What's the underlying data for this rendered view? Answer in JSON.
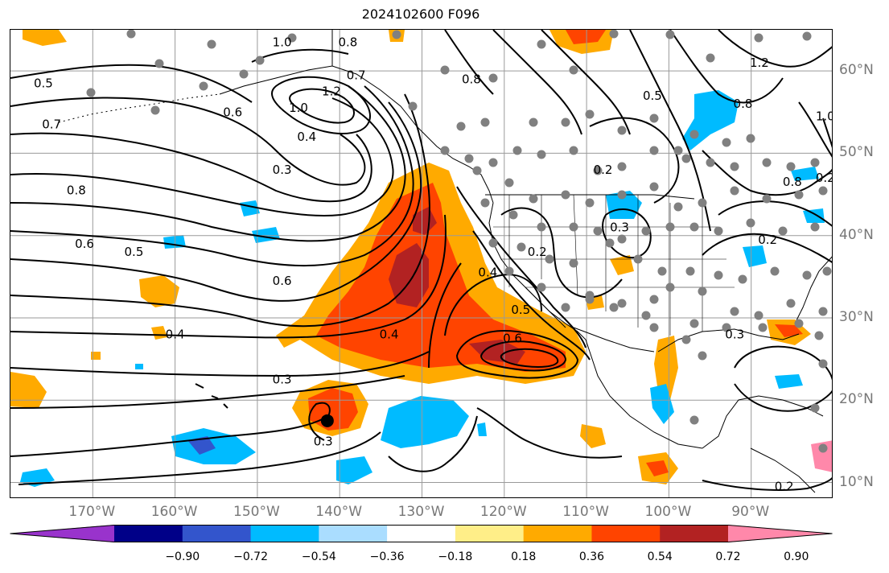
{
  "title": "2024102600 F096",
  "map": {
    "projection": "cylindrical",
    "lon_range": [
      -180,
      -80
    ],
    "lat_range": [
      8,
      65
    ],
    "lon_ticks": [
      "170°W",
      "160°W",
      "150°W",
      "140°W",
      "130°W",
      "120°W",
      "110°W",
      "100°W",
      "90°W"
    ],
    "lat_ticks": [
      "60°N",
      "50°N",
      "40°N",
      "30°N",
      "20°N",
      "10°N"
    ],
    "grid": true
  },
  "colorbar": {
    "ticks": [
      "−0.90",
      "−0.72",
      "−0.54",
      "−0.36",
      "−0.18",
      "0.18",
      "0.36",
      "0.54",
      "0.72",
      "0.90"
    ],
    "colors": [
      "#9933cc",
      "#000088",
      "#3355cc",
      "#00bbff",
      "#aaddff",
      "#ffffff",
      "#ffee88",
      "#ffaa00",
      "#ff4400",
      "#b22222",
      "#ff88aa"
    ],
    "extend": "both"
  },
  "contour_labels": [
    {
      "text": "0.5",
      "lon": -176,
      "lat": 58.5
    },
    {
      "text": "0.7",
      "lon": -175,
      "lat": 53.5
    },
    {
      "text": "0.8",
      "lon": -172,
      "lat": 45.5
    },
    {
      "text": "0.6",
      "lon": -171,
      "lat": 39
    },
    {
      "text": "0.5",
      "lon": -165,
      "lat": 38
    },
    {
      "text": "0.6",
      "lon": -153,
      "lat": 55
    },
    {
      "text": "1.0",
      "lon": -145,
      "lat": 55.5
    },
    {
      "text": "1.2",
      "lon": -141,
      "lat": 57.5
    },
    {
      "text": "0.4",
      "lon": -144,
      "lat": 52
    },
    {
      "text": "0.3",
      "lon": -147,
      "lat": 48
    },
    {
      "text": "1.0",
      "lon": -147,
      "lat": 63.5
    },
    {
      "text": "0.8",
      "lon": -139,
      "lat": 63.5
    },
    {
      "text": "0.7",
      "lon": -138,
      "lat": 59.5
    },
    {
      "text": "0.6",
      "lon": -147,
      "lat": 34.5
    },
    {
      "text": "0.4",
      "lon": -160,
      "lat": 28
    },
    {
      "text": "0.4",
      "lon": -134,
      "lat": 28
    },
    {
      "text": "0.3",
      "lon": -147,
      "lat": 22.5
    },
    {
      "text": "0.3",
      "lon": -142,
      "lat": 15
    },
    {
      "text": "0.4",
      "lon": -122,
      "lat": 35.5
    },
    {
      "text": "0.5",
      "lon": -118,
      "lat": 31
    },
    {
      "text": "0.6",
      "lon": -119,
      "lat": 27.5
    },
    {
      "text": "0.2",
      "lon": -116,
      "lat": 38
    },
    {
      "text": "0.3",
      "lon": -106,
      "lat": 41
    },
    {
      "text": "0.2",
      "lon": -108,
      "lat": 48
    },
    {
      "text": "0.8",
      "lon": -124,
      "lat": 59
    },
    {
      "text": "0.5",
      "lon": -102,
      "lat": 57
    },
    {
      "text": "0.8",
      "lon": -91,
      "lat": 56
    },
    {
      "text": "1.2",
      "lon": -89,
      "lat": 61
    },
    {
      "text": "1.0",
      "lon": -81,
      "lat": 54.5
    },
    {
      "text": "0.8",
      "lon": -85,
      "lat": 46.5
    },
    {
      "text": "0.2",
      "lon": -81,
      "lat": 47
    },
    {
      "text": "0.2",
      "lon": -88,
      "lat": 39.5
    },
    {
      "text": "0.3",
      "lon": -92,
      "lat": 28
    },
    {
      "text": "0.2",
      "lon": -86,
      "lat": 9.5
    }
  ],
  "markers": {
    "big_marker": {
      "lon": -141.5,
      "lat": 17.5
    }
  }
}
